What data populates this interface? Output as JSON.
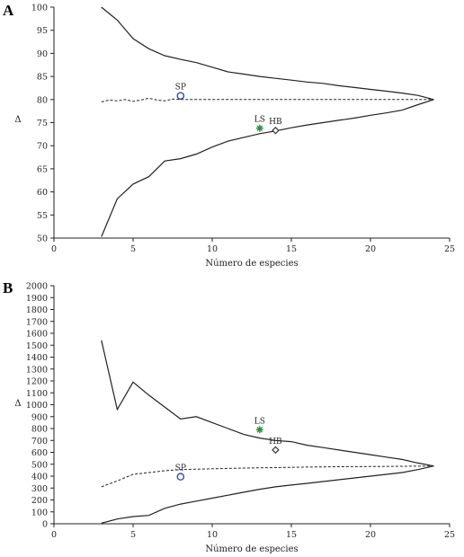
{
  "chart_data": [
    {
      "type": "line",
      "panel_label": "A",
      "xlabel": "Número de especies",
      "ylabel": "Δ",
      "xlim": [
        0,
        25
      ],
      "ylim": [
        50,
        100
      ],
      "xticks": [
        0,
        5,
        10,
        15,
        20,
        25
      ],
      "yticks": [
        50,
        55,
        60,
        65,
        70,
        75,
        80,
        85,
        90,
        95,
        100
      ],
      "series": [
        {
          "style": "solid",
          "x": [
            3,
            4,
            5,
            6,
            7,
            8,
            9,
            10,
            11,
            12,
            13,
            14,
            15,
            16,
            17,
            18,
            19,
            20,
            21,
            22,
            23,
            24
          ],
          "y": [
            100,
            97.2,
            93.2,
            91,
            89.5,
            88.7,
            88,
            87,
            86,
            85.5,
            85,
            84.6,
            84.2,
            83.8,
            83.5,
            83,
            82.6,
            82.2,
            81.8,
            81.4,
            80.9,
            80
          ]
        },
        {
          "style": "solid",
          "x": [
            3,
            4,
            5,
            6,
            7,
            8,
            9,
            10,
            11,
            12,
            13,
            14,
            15,
            16,
            17,
            18,
            19,
            20,
            21,
            22,
            23,
            24
          ],
          "y": [
            50.3,
            58.5,
            61.7,
            63.3,
            66.7,
            67.2,
            68.2,
            69.7,
            71,
            71.8,
            72.6,
            73.2,
            73.9,
            74.5,
            75,
            75.5,
            76,
            76.6,
            77.1,
            77.7,
            78.9,
            80
          ]
        },
        {
          "style": "dashed",
          "x": [
            3,
            3.5,
            4,
            4.5,
            5,
            5.5,
            6,
            6.5,
            7,
            7.5,
            8,
            9,
            10,
            12,
            14,
            16,
            18,
            20,
            22,
            24
          ],
          "y": [
            79.5,
            79.9,
            79.7,
            80.0,
            79.6,
            79.9,
            80.3,
            79.9,
            79.7,
            80.1,
            80,
            80,
            80,
            80,
            80,
            80,
            80,
            80,
            80,
            80
          ]
        }
      ],
      "points": [
        {
          "label": "SP",
          "x": 8,
          "y": 80.8,
          "marker": "circle",
          "color": "#2f3fa8"
        },
        {
          "label": "LS",
          "x": 13,
          "y": 73.8,
          "marker": "asterisk",
          "color": "#2e8b3a"
        },
        {
          "label": "HB",
          "x": 14,
          "y": 73.3,
          "marker": "diamond",
          "color": "#333333"
        }
      ]
    },
    {
      "type": "line",
      "panel_label": "B",
      "xlabel": "Número de especies",
      "ylabel": "Δ",
      "xlim": [
        0,
        25
      ],
      "ylim": [
        0,
        2000
      ],
      "xticks": [
        0,
        5,
        10,
        15,
        20,
        25
      ],
      "yticks": [
        0,
        100,
        200,
        300,
        400,
        500,
        600,
        700,
        800,
        900,
        1000,
        1100,
        1200,
        1300,
        1400,
        1500,
        1600,
        1700,
        1800,
        1900,
        2000
      ],
      "series": [
        {
          "style": "solid",
          "x": [
            3,
            4,
            5,
            6,
            7,
            8,
            9,
            10,
            11,
            12,
            13,
            14,
            15,
            16,
            17,
            18,
            19,
            20,
            21,
            22,
            23,
            24
          ],
          "y": [
            1540,
            960,
            1190,
            1080,
            980,
            880,
            900,
            850,
            800,
            750,
            720,
            700,
            690,
            660,
            640,
            620,
            600,
            580,
            560,
            540,
            510,
            485
          ]
        },
        {
          "style": "solid",
          "x": [
            3,
            4,
            5,
            6,
            7,
            8,
            9,
            10,
            11,
            12,
            13,
            14,
            15,
            16,
            17,
            18,
            19,
            20,
            21,
            22,
            23,
            24
          ],
          "y": [
            5,
            40,
            60,
            70,
            130,
            165,
            190,
            215,
            240,
            265,
            290,
            310,
            325,
            340,
            355,
            370,
            385,
            400,
            415,
            430,
            455,
            485
          ]
        },
        {
          "style": "dashed",
          "x": [
            3,
            4,
            5,
            6,
            7,
            8,
            10,
            12,
            14,
            16,
            18,
            20,
            22,
            24
          ],
          "y": [
            310,
            360,
            415,
            430,
            445,
            455,
            462,
            468,
            472,
            476,
            479,
            481,
            483,
            485
          ]
        }
      ],
      "points": [
        {
          "label": "SP",
          "x": 8,
          "y": 395,
          "marker": "circle",
          "color": "#2f3fa8"
        },
        {
          "label": "LS",
          "x": 13,
          "y": 790,
          "marker": "asterisk",
          "color": "#2e8b3a"
        },
        {
          "label": "HB",
          "x": 14,
          "y": 620,
          "marker": "diamond",
          "color": "#333333"
        }
      ]
    }
  ]
}
